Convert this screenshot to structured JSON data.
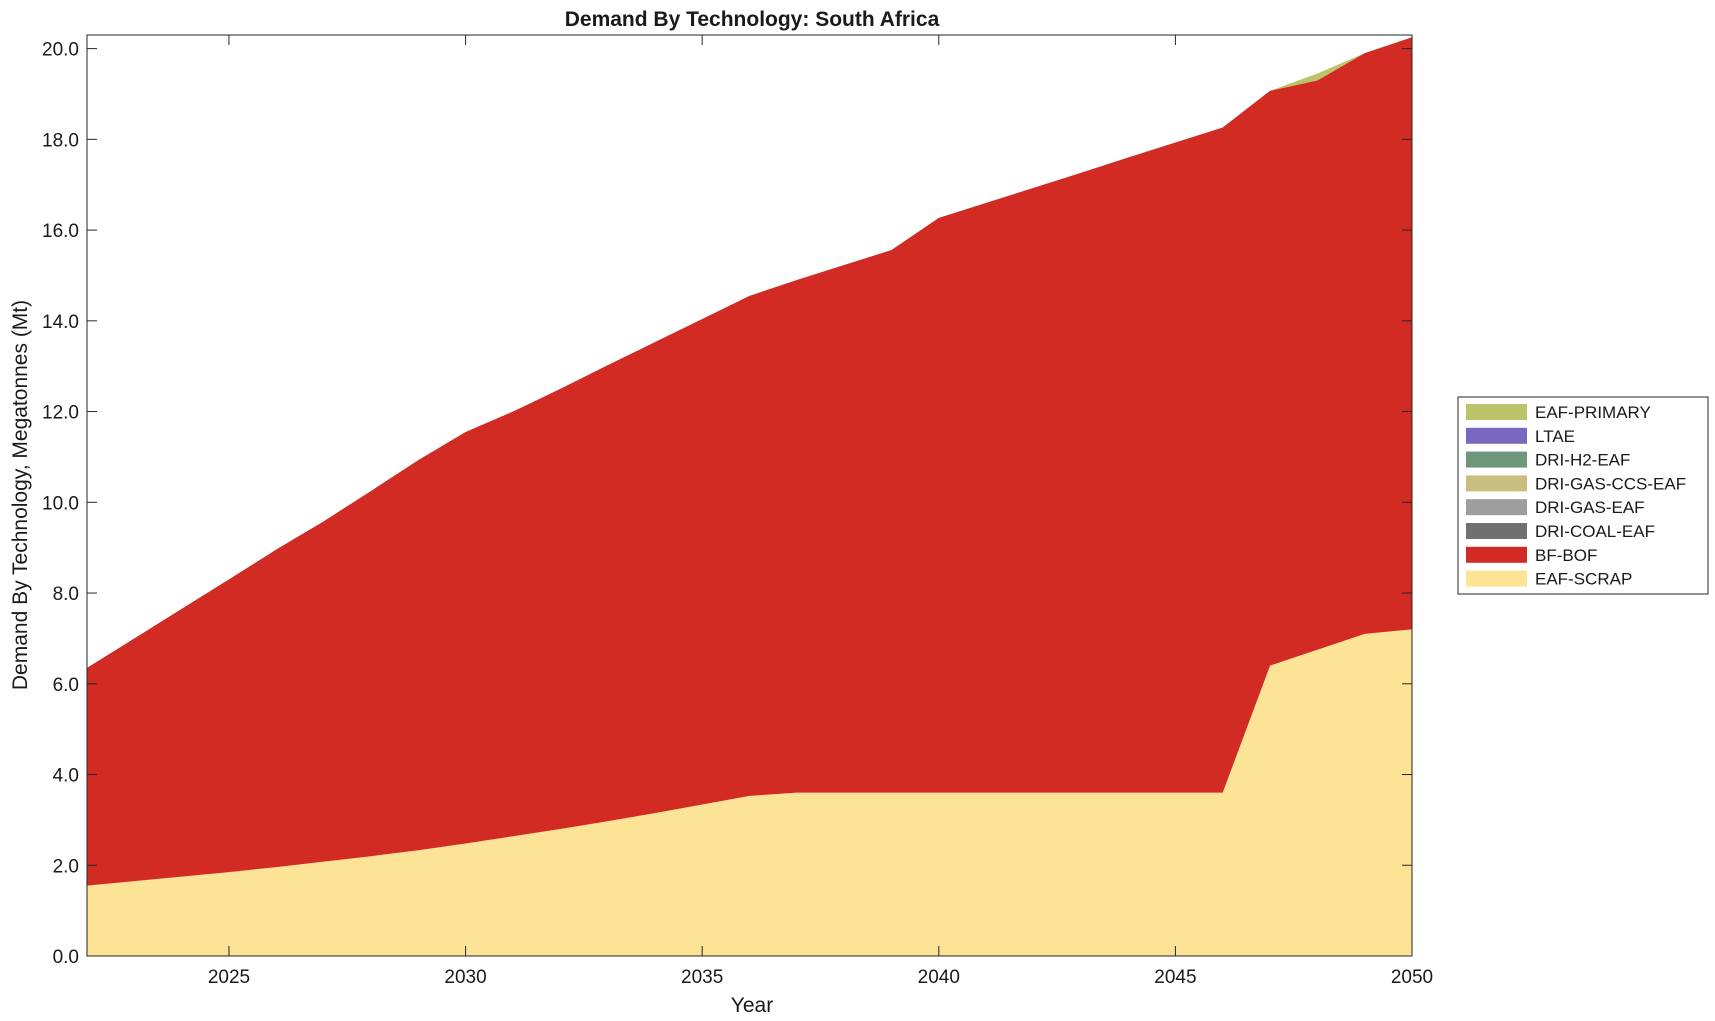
{
  "chart_data": {
    "type": "area",
    "stacked": true,
    "title": "Demand By Technology: South Africa",
    "xlabel": "Year",
    "ylabel": "Demand By Technology, Megatonnes (Mt)",
    "xlim": [
      2022,
      2050
    ],
    "ylim": [
      0,
      20.3
    ],
    "xticks": [
      2025,
      2030,
      2035,
      2040,
      2045,
      2050
    ],
    "yticks": [
      0,
      2,
      4,
      6,
      8,
      10,
      12,
      14,
      16,
      18,
      20
    ],
    "ytick_labels": [
      "0.0",
      "2.0",
      "4.0",
      "6.0",
      "8.0",
      "10.0",
      "12.0",
      "14.0",
      "16.0",
      "18.0",
      "20.0"
    ],
    "grid": false,
    "legend_position": "right",
    "x": [
      2022,
      2023,
      2024,
      2025,
      2026,
      2027,
      2028,
      2029,
      2030,
      2031,
      2032,
      2033,
      2034,
      2035,
      2036,
      2037,
      2038,
      2039,
      2040,
      2041,
      2042,
      2043,
      2044,
      2045,
      2046,
      2047,
      2048,
      2049,
      2050
    ],
    "series": [
      {
        "name": "EAF-SCRAP",
        "color": "#fde396",
        "values": [
          1.55,
          1.65,
          1.75,
          1.85,
          1.96,
          2.08,
          2.2,
          2.33,
          2.48,
          2.64,
          2.8,
          2.97,
          3.15,
          3.34,
          3.53,
          3.6,
          3.6,
          3.6,
          3.6,
          3.6,
          3.6,
          3.6,
          3.6,
          3.6,
          3.6,
          6.4,
          6.75,
          7.1,
          7.2
        ]
      },
      {
        "name": "BF-BOF",
        "color": "#d12b24",
        "values": [
          4.8,
          5.35,
          5.9,
          6.45,
          7.0,
          7.5,
          8.05,
          8.6,
          9.07,
          9.36,
          9.7,
          10.05,
          10.38,
          10.7,
          11.02,
          11.3,
          11.63,
          11.96,
          12.67,
          13.0,
          13.33,
          13.66,
          14.0,
          14.33,
          14.66,
          12.67,
          12.55,
          12.8,
          13.05
        ]
      },
      {
        "name": "DRI-COAL-EAF",
        "color": "#707070",
        "values": [
          0,
          0,
          0,
          0,
          0,
          0,
          0,
          0,
          0,
          0,
          0,
          0,
          0,
          0,
          0,
          0,
          0,
          0,
          0,
          0,
          0,
          0,
          0,
          0,
          0,
          0,
          0,
          0,
          0
        ]
      },
      {
        "name": "DRI-GAS-EAF",
        "color": "#9e9e9e",
        "values": [
          0,
          0,
          0,
          0,
          0,
          0,
          0,
          0,
          0,
          0,
          0,
          0,
          0,
          0,
          0,
          0,
          0,
          0,
          0,
          0,
          0,
          0,
          0,
          0,
          0,
          0,
          0,
          0,
          0
        ]
      },
      {
        "name": "DRI-GAS-CCS-EAF",
        "color": "#c9bd7f",
        "values": [
          0,
          0,
          0,
          0,
          0,
          0,
          0,
          0,
          0,
          0,
          0,
          0,
          0,
          0,
          0,
          0,
          0,
          0,
          0,
          0,
          0,
          0,
          0,
          0,
          0,
          0,
          0,
          0,
          0
        ]
      },
      {
        "name": "DRI-H2-EAF",
        "color": "#6f957a",
        "values": [
          0,
          0,
          0,
          0,
          0,
          0,
          0,
          0,
          0,
          0,
          0,
          0,
          0,
          0,
          0,
          0,
          0,
          0,
          0,
          0,
          0,
          0,
          0,
          0,
          0,
          0,
          0,
          0,
          0
        ]
      },
      {
        "name": "LTAE",
        "color": "#7869bf",
        "values": [
          0,
          0,
          0,
          0,
          0,
          0,
          0,
          0,
          0,
          0,
          0,
          0,
          0,
          0,
          0,
          0,
          0,
          0,
          0,
          0,
          0,
          0,
          0,
          0,
          0,
          0,
          0,
          0,
          0
        ]
      },
      {
        "name": "EAF-PRIMARY",
        "color": "#bcc46b",
        "values": [
          0,
          0,
          0,
          0,
          0,
          0,
          0,
          0,
          0,
          0,
          0,
          0,
          0,
          0,
          0,
          0,
          0,
          0,
          0,
          0,
          0,
          0,
          0,
          0,
          0,
          0,
          0.15,
          0,
          0
        ]
      }
    ]
  }
}
